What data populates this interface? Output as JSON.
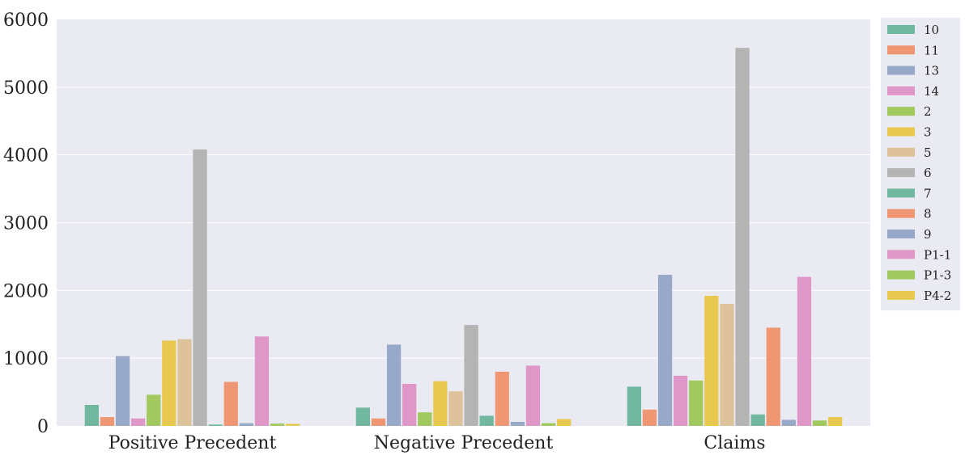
{
  "chart_data": {
    "type": "bar",
    "title": "",
    "xlabel": "",
    "ylabel": "",
    "categories": [
      "Positive Precedent",
      "Negative Precedent",
      "Claims"
    ],
    "ylim": [
      0,
      6000
    ],
    "yticks": [
      0,
      1000,
      2000,
      3000,
      4000,
      5000,
      6000
    ],
    "grid": true,
    "legend_position": "outside-right-top",
    "series": [
      {
        "name": "10",
        "color": "#72b8a1",
        "values": [
          310,
          270,
          580
        ]
      },
      {
        "name": "11",
        "color": "#ee9772",
        "values": [
          130,
          110,
          240
        ]
      },
      {
        "name": "13",
        "color": "#97a8c9",
        "values": [
          1030,
          1200,
          2230
        ]
      },
      {
        "name": "14",
        "color": "#df97c7",
        "values": [
          110,
          620,
          740
        ]
      },
      {
        "name": "2",
        "color": "#a2c860",
        "values": [
          460,
          200,
          670
        ]
      },
      {
        "name": "3",
        "color": "#e9c84f",
        "values": [
          1260,
          660,
          1920
        ]
      },
      {
        "name": "5",
        "color": "#ddc29c",
        "values": [
          1280,
          510,
          1800
        ]
      },
      {
        "name": "6",
        "color": "#b4b4b4",
        "values": [
          4080,
          1490,
          5580
        ]
      },
      {
        "name": "7",
        "color": "#72b8a1",
        "values": [
          20,
          150,
          170
        ]
      },
      {
        "name": "8",
        "color": "#ee9772",
        "values": [
          650,
          800,
          1450
        ]
      },
      {
        "name": "9",
        "color": "#97a8c9",
        "values": [
          40,
          60,
          90
        ]
      },
      {
        "name": "P1-1",
        "color": "#df97c7",
        "values": [
          1320,
          890,
          2200
        ]
      },
      {
        "name": "P1-3",
        "color": "#a2c860",
        "values": [
          35,
          40,
          80
        ]
      },
      {
        "name": "P4-2",
        "color": "#e9c84f",
        "values": [
          30,
          100,
          130
        ]
      }
    ]
  }
}
